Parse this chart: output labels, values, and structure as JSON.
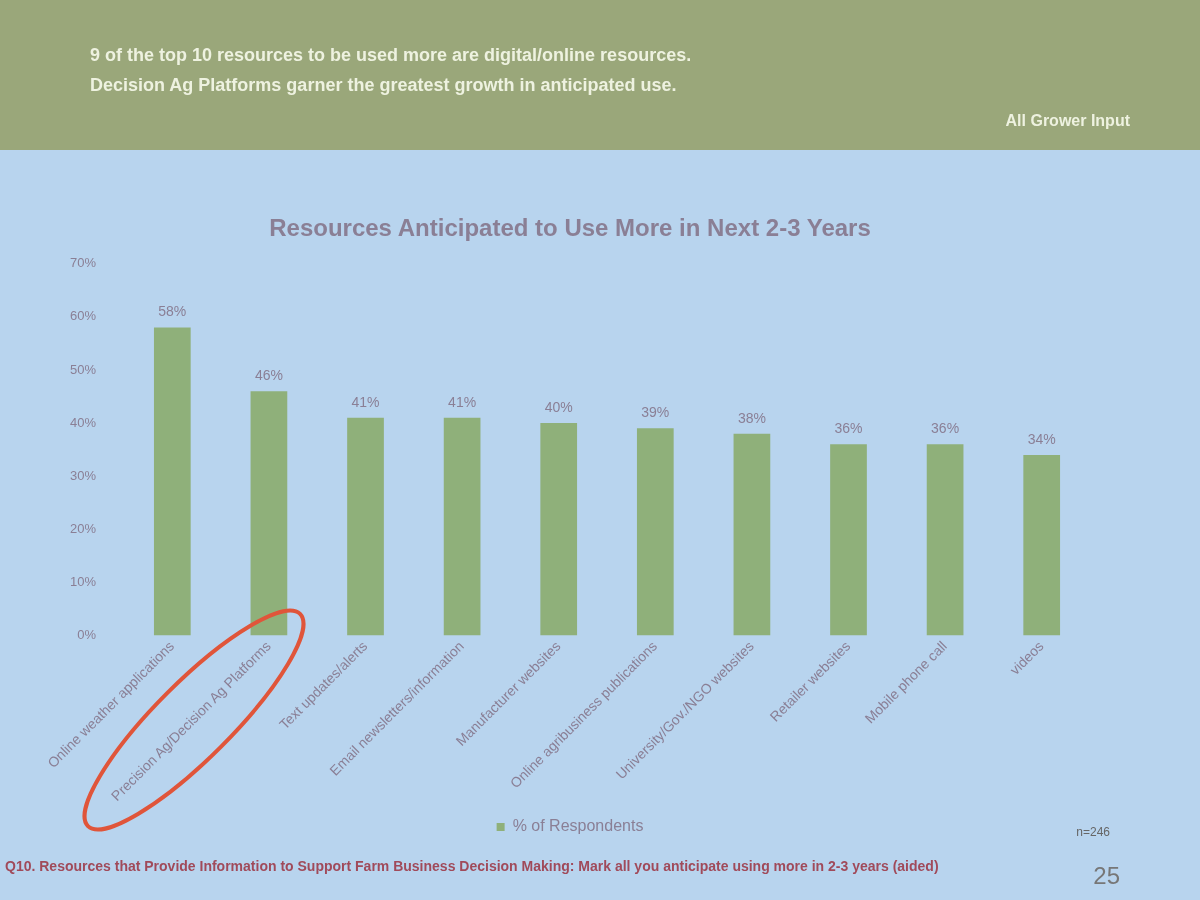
{
  "chart_data": {
    "type": "bar",
    "title": "Resources Anticipated to Use More in Next 2-3 Years",
    "categories": [
      "Online weather applications",
      "Precision Ag/Decision Ag Platforms",
      "Text updates/alerts",
      "Email newsletters/information",
      "Manufacturer websites",
      "Online agribusiness publications",
      "University/Gov./NGO websites",
      "Retailer websites",
      "Mobile phone call",
      "videos"
    ],
    "series": [
      {
        "name": "% of Respondents",
        "color": "#8fb07a",
        "values": [
          58,
          46,
          41,
          41,
          40,
          39,
          38,
          36,
          36,
          34
        ],
        "value_labels": [
          "58%",
          "46%",
          "41%",
          "41%",
          "40%",
          "39%",
          "38%",
          "36%",
          "36%",
          "34%"
        ]
      }
    ],
    "ylim": [
      0,
      70
    ],
    "yticks": [
      {
        "value": 0,
        "label": "0%"
      },
      {
        "value": 10,
        "label": "10%"
      },
      {
        "value": 20,
        "label": "20%"
      },
      {
        "value": 30,
        "label": "30%"
      },
      {
        "value": 40,
        "label": "40%"
      },
      {
        "value": 50,
        "label": "50%"
      },
      {
        "value": 60,
        "label": "60%"
      },
      {
        "value": 70,
        "label": "70%"
      }
    ],
    "grid": false,
    "legend": "bottom",
    "annotations": [
      "9 of the top 10 resources to be used more are digital/online resources.",
      "Decision Ag Platforms garner the greatest growth in anticipated use.",
      "All Grower Input",
      "n=246",
      "Q10. Resources that Provide Information to Support Farm Business Decision Making: Mark all you anticipate using more in 2-3 years (aided)",
      "25"
    ]
  }
}
